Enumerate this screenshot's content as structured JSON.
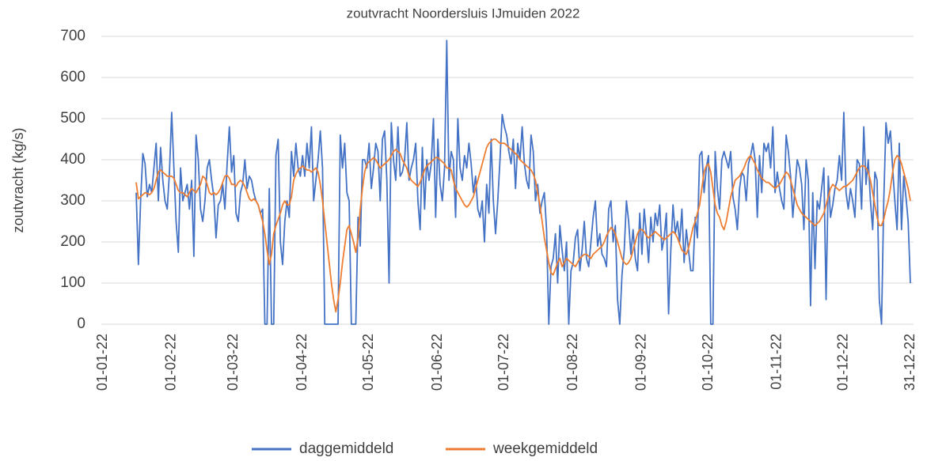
{
  "chart_data": {
    "type": "line",
    "title": "zoutvracht Noordersluis IJmuiden 2022",
    "y_label": "zoutvracht (kg/s)",
    "ylim": [
      0,
      700
    ],
    "yticks": [
      0,
      100,
      200,
      300,
      400,
      500,
      600,
      700
    ],
    "grid": true,
    "xlim": [
      "01-01-22",
      "31-12-22"
    ],
    "xticks": [
      "01-01-22",
      "01-02-22",
      "01-03-22",
      "01-04-22",
      "01-05-22",
      "01-06-22",
      "01-07-22",
      "01-08-22",
      "01-09-22",
      "01-10-22",
      "01-11-22",
      "01-12-22",
      "31-12-22"
    ],
    "legend": "bottom",
    "x": [
      "16-01-22",
      "17-01-22",
      "18-01-22",
      "19-01-22",
      "20-01-22",
      "21-01-22",
      "22-01-22",
      "23-01-22",
      "24-01-22",
      "25-01-22",
      "26-01-22",
      "27-01-22",
      "28-01-22",
      "29-01-22",
      "30-01-22",
      "31-01-22",
      "01-02-22",
      "02-02-22",
      "03-02-22",
      "04-02-22",
      "05-02-22",
      "06-02-22",
      "07-02-22",
      "08-02-22",
      "09-02-22",
      "10-02-22",
      "11-02-22",
      "12-02-22",
      "13-02-22",
      "14-02-22",
      "15-02-22",
      "16-02-22",
      "17-02-22",
      "18-02-22",
      "19-02-22",
      "20-02-22",
      "21-02-22",
      "22-02-22",
      "23-02-22",
      "24-02-22",
      "25-02-22",
      "26-02-22",
      "27-02-22",
      "28-02-22",
      "01-03-22",
      "02-03-22",
      "03-03-22",
      "04-03-22",
      "05-03-22",
      "06-03-22",
      "07-03-22",
      "08-03-22",
      "09-03-22",
      "10-03-22",
      "11-03-22",
      "12-03-22",
      "13-03-22",
      "14-03-22",
      "15-03-22",
      "16-03-22",
      "17-03-22",
      "18-03-22",
      "19-03-22",
      "20-03-22",
      "21-03-22",
      "22-03-22",
      "23-03-22",
      "24-03-22",
      "25-03-22",
      "26-03-22",
      "27-03-22",
      "28-03-22",
      "29-03-22",
      "30-03-22",
      "31-03-22",
      "01-04-22",
      "02-04-22",
      "03-04-22",
      "04-04-22",
      "05-04-22",
      "06-04-22",
      "07-04-22",
      "08-04-22",
      "09-04-22",
      "10-04-22",
      "11-04-22",
      "12-04-22",
      "13-04-22",
      "14-04-22",
      "15-04-22",
      "16-04-22",
      "17-04-22",
      "18-04-22",
      "19-04-22",
      "20-04-22",
      "21-04-22",
      "22-04-22",
      "23-04-22",
      "24-04-22",
      "25-04-22",
      "26-04-22",
      "27-04-22",
      "28-04-22",
      "29-04-22",
      "30-04-22",
      "01-05-22",
      "02-05-22",
      "03-05-22",
      "04-05-22",
      "05-05-22",
      "06-05-22",
      "07-05-22",
      "08-05-22",
      "09-05-22",
      "10-05-22",
      "11-05-22",
      "12-05-22",
      "13-05-22",
      "14-05-22",
      "15-05-22",
      "16-05-22",
      "17-05-22",
      "18-05-22",
      "19-05-22",
      "20-05-22",
      "21-05-22",
      "22-05-22",
      "23-05-22",
      "24-05-22",
      "25-05-22",
      "26-05-22",
      "27-05-22",
      "28-05-22",
      "29-05-22",
      "30-05-22",
      "31-05-22",
      "01-06-22",
      "02-06-22",
      "03-06-22",
      "04-06-22",
      "05-06-22",
      "06-06-22",
      "07-06-22",
      "08-06-22",
      "09-06-22",
      "10-06-22",
      "11-06-22",
      "12-06-22",
      "13-06-22",
      "14-06-22",
      "15-06-22",
      "16-06-22",
      "17-06-22",
      "18-06-22",
      "19-06-22",
      "20-06-22",
      "21-06-22",
      "22-06-22",
      "23-06-22",
      "24-06-22",
      "25-06-22",
      "26-06-22",
      "27-06-22",
      "28-06-22",
      "29-06-22",
      "30-06-22",
      "01-07-22",
      "02-07-22",
      "03-07-22",
      "04-07-22",
      "05-07-22",
      "06-07-22",
      "07-07-22",
      "08-07-22",
      "09-07-22",
      "10-07-22",
      "11-07-22",
      "12-07-22",
      "13-07-22",
      "14-07-22",
      "15-07-22",
      "16-07-22",
      "17-07-22",
      "18-07-22",
      "19-07-22",
      "20-07-22",
      "21-07-22",
      "22-07-22",
      "23-07-22",
      "24-07-22",
      "25-07-22",
      "26-07-22",
      "27-07-22",
      "28-07-22",
      "29-07-22",
      "30-07-22",
      "31-07-22",
      "01-08-22",
      "02-08-22",
      "03-08-22",
      "04-08-22",
      "05-08-22",
      "06-08-22",
      "07-08-22",
      "08-08-22",
      "09-08-22",
      "10-08-22",
      "11-08-22",
      "12-08-22",
      "13-08-22",
      "14-08-22",
      "15-08-22",
      "16-08-22",
      "17-08-22",
      "18-08-22",
      "19-08-22",
      "20-08-22",
      "21-08-22",
      "22-08-22",
      "23-08-22",
      "24-08-22",
      "25-08-22",
      "26-08-22",
      "27-08-22",
      "28-08-22",
      "29-08-22",
      "30-08-22",
      "31-08-22",
      "01-09-22",
      "02-09-22",
      "03-09-22",
      "04-09-22",
      "05-09-22",
      "06-09-22",
      "07-09-22",
      "08-09-22",
      "09-09-22",
      "10-09-22",
      "11-09-22",
      "12-09-22",
      "13-09-22",
      "14-09-22",
      "15-09-22",
      "16-09-22",
      "17-09-22",
      "18-09-22",
      "19-09-22",
      "20-09-22",
      "21-09-22",
      "22-09-22",
      "23-09-22",
      "24-09-22",
      "25-09-22",
      "26-09-22",
      "27-09-22",
      "28-09-22",
      "29-09-22",
      "30-09-22",
      "01-10-22",
      "02-10-22",
      "03-10-22",
      "04-10-22",
      "05-10-22",
      "06-10-22",
      "07-10-22",
      "08-10-22",
      "09-10-22",
      "10-10-22",
      "11-10-22",
      "12-10-22",
      "13-10-22",
      "14-10-22",
      "15-10-22",
      "16-10-22",
      "17-10-22",
      "18-10-22",
      "19-10-22",
      "20-10-22",
      "21-10-22",
      "22-10-22",
      "23-10-22",
      "24-10-22",
      "25-10-22",
      "26-10-22",
      "27-10-22",
      "28-10-22",
      "29-10-22",
      "30-10-22",
      "31-10-22",
      "01-11-22",
      "02-11-22",
      "03-11-22",
      "04-11-22",
      "05-11-22",
      "06-11-22",
      "07-11-22",
      "08-11-22",
      "09-11-22",
      "10-11-22",
      "11-11-22",
      "12-11-22",
      "13-11-22",
      "14-11-22",
      "15-11-22",
      "16-11-22",
      "17-11-22",
      "18-11-22",
      "19-11-22",
      "20-11-22",
      "21-11-22",
      "22-11-22",
      "23-11-22",
      "24-11-22",
      "25-11-22",
      "26-11-22",
      "27-11-22",
      "28-11-22",
      "29-11-22",
      "30-11-22",
      "01-12-22",
      "02-12-22",
      "03-12-22",
      "04-12-22",
      "05-12-22",
      "06-12-22",
      "07-12-22",
      "08-12-22",
      "09-12-22",
      "10-12-22",
      "11-12-22",
      "12-12-22",
      "13-12-22",
      "14-12-22",
      "15-12-22",
      "16-12-22",
      "17-12-22",
      "18-12-22",
      "19-12-22",
      "20-12-22",
      "21-12-22",
      "22-12-22",
      "23-12-22",
      "24-12-22",
      "25-12-22",
      "26-12-22",
      "27-12-22",
      "28-12-22",
      "29-12-22",
      "30-12-22",
      "31-12-22"
    ],
    "series": [
      {
        "name": "daggemiddeld",
        "color": "#4472c4",
        "values": [
          320,
          145,
          300,
          415,
          390,
          310,
          340,
          320,
          380,
          440,
          300,
          430,
          350,
          300,
          280,
          370,
          515,
          380,
          250,
          175,
          380,
          300,
          320,
          340,
          280,
          350,
          165,
          460,
          400,
          280,
          250,
          300,
          380,
          400,
          350,
          310,
          210,
          290,
          300,
          340,
          280,
          390,
          480,
          370,
          410,
          270,
          250,
          320,
          340,
          400,
          330,
          360,
          350,
          320,
          300,
          290,
          270,
          280,
          0,
          0,
          330,
          0,
          0,
          410,
          450,
          200,
          145,
          250,
          300,
          260,
          420,
          360,
          440,
          380,
          360,
          410,
          360,
          440,
          380,
          480,
          300,
          350,
          400,
          470,
          380,
          0,
          0,
          0,
          0,
          0,
          0,
          0,
          460,
          380,
          440,
          320,
          300,
          0,
          0,
          0,
          260,
          190,
          400,
          400,
          380,
          440,
          330,
          380,
          440,
          420,
          300,
          450,
          470,
          350,
          100,
          490,
          400,
          350,
          480,
          360,
          370,
          400,
          490,
          350,
          380,
          400,
          440,
          300,
          230,
          430,
          280,
          400,
          350,
          390,
          500,
          260,
          450,
          340,
          300,
          380,
          690,
          350,
          420,
          400,
          260,
          500,
          380,
          350,
          410,
          380,
          440,
          390,
          320,
          360,
          280,
          260,
          300,
          200,
          340,
          270,
          450,
          300,
          220,
          300,
          400,
          510,
          480,
          460,
          420,
          390,
          450,
          330,
          440,
          400,
          480,
          390,
          350,
          330,
          460,
          420,
          300,
          340,
          270,
          300,
          320,
          230,
          0,
          140,
          160,
          220,
          100,
          240,
          180,
          130,
          200,
          0,
          130,
          150,
          210,
          230,
          130,
          180,
          250,
          160,
          140,
          200,
          260,
          300,
          190,
          220,
          170,
          160,
          140,
          280,
          300,
          200,
          240,
          60,
          0,
          120,
          180,
          300,
          250,
          170,
          230,
          160,
          130,
          270,
          170,
          280,
          220,
          150,
          260,
          200,
          270,
          240,
          290,
          180,
          210,
          270,
          25,
          180,
          290,
          220,
          250,
          200,
          280,
          150,
          230,
          180,
          130,
          130,
          260,
          210,
          410,
          420,
          320,
          380,
          410,
          0,
          0,
          420,
          330,
          280,
          400,
          420,
          400,
          380,
          420,
          310,
          280,
          230,
          330,
          370,
          360,
          300,
          390,
          410,
          440,
          400,
          260,
          410,
          320,
          440,
          420,
          440,
          380,
          480,
          320,
          370,
          330,
          300,
          280,
          460,
          420,
          360,
          260,
          330,
          400,
          380,
          340,
          230,
          400,
          350,
          45,
          320,
          135,
          300,
          280,
          330,
          380,
          60,
          360,
          260,
          290,
          330,
          350,
          410,
          350,
          515,
          320,
          280,
          330,
          300,
          260,
          400,
          390,
          280,
          480,
          340,
          400,
          300,
          230,
          370,
          350,
          60,
          0,
          300,
          490,
          440,
          470,
          380,
          300,
          230,
          440,
          230,
          360,
          310,
          250,
          100
        ]
      },
      {
        "name": "weekgemiddeld",
        "color": "#ed7d31",
        "values": [
          345,
          305,
          310,
          315,
          320,
          318,
          315,
          320,
          330,
          350,
          370,
          375,
          370,
          365,
          360,
          360,
          360,
          355,
          340,
          325,
          320,
          320,
          315,
          310,
          320,
          330,
          325,
          320,
          330,
          340,
          360,
          355,
          340,
          320,
          315,
          320,
          315,
          320,
          330,
          345,
          360,
          362,
          355,
          340,
          340,
          335,
          345,
          350,
          345,
          335,
          320,
          305,
          300,
          305,
          300,
          290,
          270,
          250,
          220,
          180,
          145,
          170,
          220,
          240,
          255,
          270,
          290,
          300,
          290,
          290,
          310,
          350,
          365,
          375,
          380,
          385,
          380,
          375,
          375,
          370,
          375,
          380,
          370,
          340,
          300,
          250,
          200,
          150,
          100,
          60,
          30,
          60,
          100,
          150,
          190,
          230,
          240,
          220,
          200,
          175,
          210,
          280,
          330,
          370,
          390,
          395,
          400,
          405,
          400,
          390,
          380,
          385,
          390,
          395,
          400,
          410,
          420,
          425,
          420,
          415,
          400,
          390,
          380,
          360,
          350,
          345,
          340,
          335,
          345,
          360,
          375,
          385,
          390,
          395,
          400,
          405,
          405,
          400,
          395,
          390,
          380,
          380,
          375,
          350,
          330,
          320,
          310,
          300,
          290,
          285,
          290,
          300,
          310,
          330,
          350,
          370,
          390,
          410,
          430,
          440,
          445,
          450,
          450,
          445,
          440,
          440,
          440,
          435,
          430,
          425,
          420,
          415,
          410,
          400,
          395,
          390,
          385,
          380,
          375,
          365,
          350,
          320,
          290,
          250,
          210,
          180,
          150,
          125,
          120,
          135,
          150,
          160,
          140,
          150,
          160,
          155,
          150,
          145,
          140,
          150,
          160,
          165,
          170,
          170,
          165,
          160,
          170,
          175,
          180,
          185,
          190,
          200,
          215,
          225,
          235,
          230,
          220,
          200,
          180,
          160,
          150,
          145,
          150,
          160,
          180,
          200,
          220,
          230,
          230,
          225,
          215,
          210,
          215,
          220,
          225,
          220,
          215,
          210,
          205,
          210,
          215,
          220,
          225,
          220,
          210,
          195,
          180,
          175,
          170,
          185,
          210,
          235,
          250,
          270,
          290,
          330,
          370,
          385,
          390,
          370,
          330,
          290,
          270,
          260,
          240,
          230,
          250,
          280,
          310,
          330,
          350,
          355,
          360,
          370,
          380,
          395,
          405,
          410,
          400,
          390,
          375,
          365,
          355,
          350,
          345,
          345,
          340,
          335,
          330,
          335,
          340,
          350,
          360,
          370,
          365,
          350,
          330,
          310,
          290,
          280,
          270,
          265,
          260,
          255,
          250,
          245,
          240,
          245,
          250,
          260,
          270,
          290,
          310,
          330,
          340,
          335,
          330,
          325,
          330,
          335,
          335,
          340,
          345,
          350,
          360,
          370,
          380,
          385,
          385,
          380,
          370,
          350,
          320,
          290,
          260,
          240,
          240,
          255,
          280,
          300,
          330,
          370,
          400,
          410,
          405,
          390,
          370,
          350,
          330,
          300
        ]
      }
    ]
  }
}
